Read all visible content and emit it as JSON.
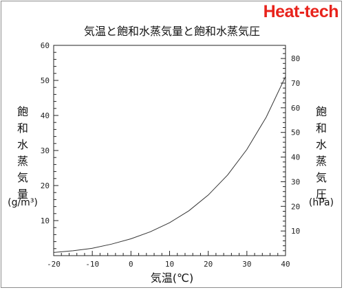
{
  "brand": "Heat-tech",
  "chart_data": {
    "type": "line",
    "title": "気温と飽和水蒸気量と飽和水蒸気圧",
    "xlabel": "気温(℃)",
    "ylabel_left": "飽和水蒸気量",
    "ylabel_left_unit": "(g/m³)",
    "ylabel_right": "飽和水蒸気圧",
    "ylabel_right_unit": "(hPa)",
    "xlim": [
      -20,
      40
    ],
    "ylim_left": [
      0,
      60
    ],
    "ylim_right": [
      0,
      85.33
    ],
    "x_ticks": [
      "-20",
      "-10",
      "0",
      "10",
      "20",
      "30",
      "40"
    ],
    "left_ticks": [
      "10",
      "20",
      "30",
      "40",
      "50",
      "60"
    ],
    "right_ticks": [
      "10",
      "20",
      "30",
      "40",
      "50",
      "60",
      "70",
      "80"
    ],
    "grid": false,
    "series": [
      {
        "x": [
          -20,
          -15,
          -10,
          -5,
          0,
          5,
          10,
          15,
          20,
          25,
          30,
          35,
          40
        ],
        "y": [
          0.9,
          1.4,
          2.1,
          3.3,
          4.8,
          6.8,
          9.4,
          12.8,
          17.3,
          23.0,
          30.3,
          39.5,
          51.1
        ]
      }
    ]
  }
}
